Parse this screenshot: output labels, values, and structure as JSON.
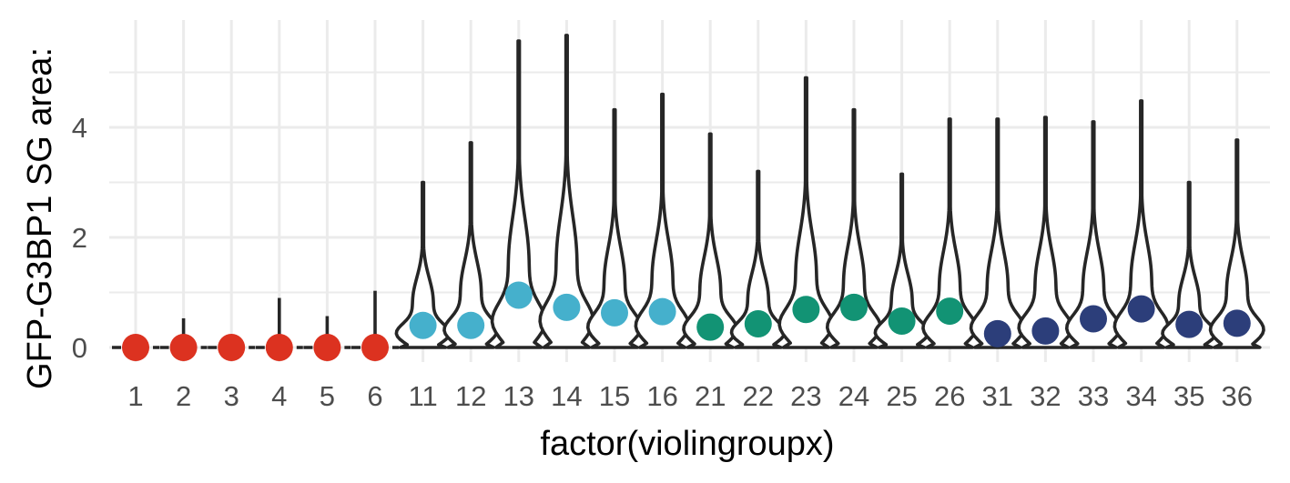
{
  "chart_data": {
    "type": "violin",
    "xlabel": "factor(violingroupx)",
    "ylabel": "GFP-G3BP1 SG area:",
    "ylim": [
      0,
      5.8
    ],
    "yticks": [
      0,
      2,
      4
    ],
    "grid": true,
    "categories": [
      "1",
      "2",
      "3",
      "4",
      "5",
      "6",
      "11",
      "12",
      "13",
      "14",
      "15",
      "16",
      "21",
      "22",
      "23",
      "24",
      "25",
      "26",
      "31",
      "32",
      "33",
      "34",
      "35",
      "36"
    ],
    "medians": [
      0,
      0,
      0,
      0,
      0,
      0,
      0.4,
      0.4,
      0.95,
      0.73,
      0.63,
      0.65,
      0.37,
      0.43,
      0.69,
      0.73,
      0.48,
      0.66,
      0.25,
      0.3,
      0.52,
      0.7,
      0.42,
      0.44
    ],
    "maxima": [
      0,
      0.53,
      0,
      0.9,
      0.57,
      1.03,
      3.0,
      3.72,
      5.57,
      5.67,
      4.32,
      4.6,
      3.88,
      3.2,
      4.9,
      4.32,
      3.15,
      4.15,
      4.15,
      4.18,
      4.1,
      4.48,
      3.0,
      3.77
    ],
    "point_colors": [
      "#dc3220",
      "#dc3220",
      "#dc3220",
      "#dc3220",
      "#dc3220",
      "#dc3220",
      "#45b0cc",
      "#45b0cc",
      "#45b0cc",
      "#45b0cc",
      "#45b0cc",
      "#45b0cc",
      "#129374",
      "#129374",
      "#129374",
      "#129374",
      "#129374",
      "#129374",
      "#2c3e7a",
      "#2c3e7a",
      "#2c3e7a",
      "#2c3e7a",
      "#2c3e7a",
      "#2c3e7a"
    ],
    "outline_color": "#262626"
  }
}
